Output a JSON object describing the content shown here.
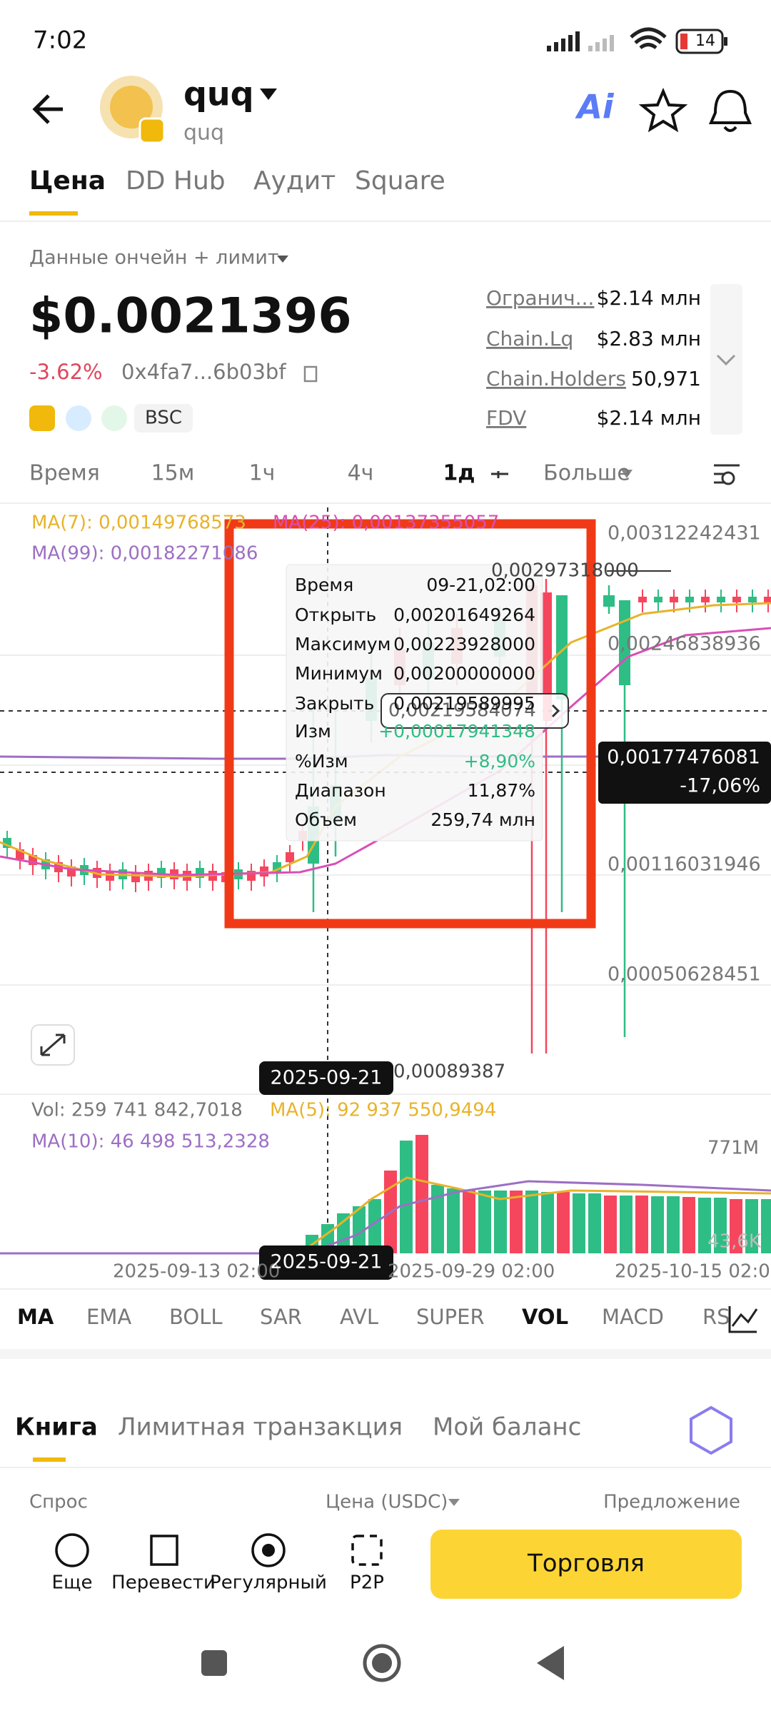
{
  "status": {
    "time": "7:02",
    "battery": "14"
  },
  "header": {
    "title": "quq",
    "subtitle": "quq",
    "ai": "Ai"
  },
  "tabs": [
    "Цена",
    "DD Hub",
    "Аудит",
    "Square"
  ],
  "data_source": "Данные ончейн + лимит",
  "price": "$0.0021396",
  "change": "-3.62%",
  "address": "0x4fa7...6b03bf",
  "chain": "BSC",
  "stats": [
    {
      "label": "Огранич...",
      "value": "$2.14 млн"
    },
    {
      "label": "Chain.Lq",
      "value": "$2.83 млн"
    },
    {
      "label": "Chain.Holders",
      "value": "50,971"
    },
    {
      "label": "FDV",
      "value": "$2.14 млн"
    }
  ],
  "timeframes": [
    "Время",
    "15м",
    "1ч",
    "4ч",
    "1д",
    "Больше"
  ],
  "chart": {
    "ma7": "MA(7): 0,00149768573",
    "ma25": "MA(25): 0,00137355057",
    "ma99": "MA(99): 0,00182271086",
    "price_axis": [
      "0,00312242431",
      "0,00246838936",
      "0,00116031946",
      "0,00050628451"
    ],
    "high": "0,00297318000",
    "crosshair_price": "0,00219584074",
    "low": "0,00089387",
    "current_price": "0,00177476081",
    "current_change": "-17,06%",
    "cursor_date": "2025-09-21"
  },
  "tooltip": [
    {
      "label": "Время",
      "value": "09-21,02:00"
    },
    {
      "label": "Открыть",
      "value": "0,00201649264"
    },
    {
      "label": "Максимум",
      "value": "0,00223928000"
    },
    {
      "label": "Минимум",
      "value": "0,00200000000"
    },
    {
      "label": "Закрыть",
      "value": "0,00219589995"
    },
    {
      "label": "Изм",
      "value": "+0,00017941348"
    },
    {
      "label": "%Изм",
      "value": "+8,90%"
    },
    {
      "label": "Диапазон",
      "value": "11,87%"
    },
    {
      "label": "Объем",
      "value": "259,74 млн"
    }
  ],
  "volume": {
    "vol": "Vol: 259 741 842,7018",
    "ma5": "MA(5): 92 937 550,9494",
    "ma10": "MA(10): 46 498 513,2328",
    "top": "771M",
    "bottom": "43,6K"
  },
  "x_axis": [
    "2025-09-13 02:00",
    "2025-09-29 02:00",
    "2025-10-15 02:0"
  ],
  "x_cursor": "2025-09-21",
  "indicators": [
    "MA",
    "EMA",
    "BOLL",
    "SAR",
    "AVL",
    "SUPER",
    "VOL",
    "MACD",
    "RS"
  ],
  "book_tabs": [
    "Книга",
    "Лимитная транзакция",
    "Мой баланс"
  ],
  "book_header": {
    "bid": "Спрос",
    "price": "Цена (USDC)",
    "ask": "Предложение"
  },
  "actions": [
    "Еще",
    "Перевести",
    "Регулярный",
    "P2P"
  ],
  "trade_button": "Торговля"
}
